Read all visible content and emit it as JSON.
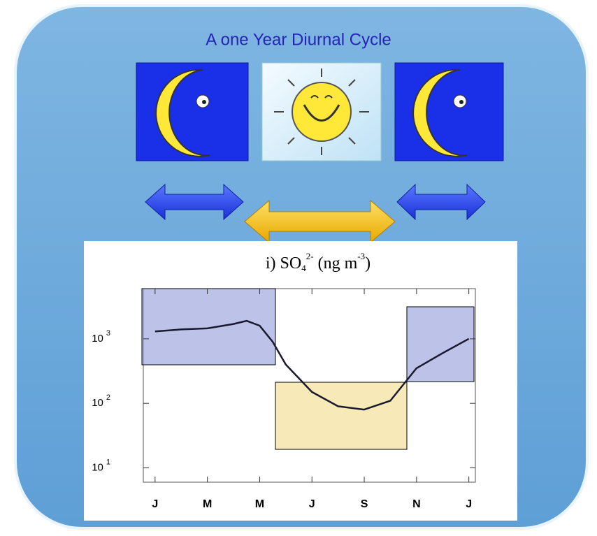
{
  "slide_title": "A one Year Diurnal Cycle",
  "chart_data": {
    "type": "line",
    "title_parts": [
      "i) SO",
      "4",
      "2-",
      " (ng m",
      "-3",
      ")"
    ],
    "x": [
      0,
      1,
      2,
      3,
      3.5,
      4,
      4.5,
      5,
      6,
      7,
      8,
      9,
      10,
      11,
      12
    ],
    "values": [
      1300,
      1400,
      1450,
      1700,
      1900,
      1600,
      900,
      400,
      150,
      90,
      80,
      110,
      350,
      600,
      1000
    ],
    "color": "#1a1a2e",
    "log_y": true,
    "xlim": [
      -0.45,
      12.25
    ],
    "ylim": [
      6,
      6000
    ],
    "xticks": [
      {
        "value": 0,
        "label": "J"
      },
      {
        "value": 2,
        "label": "M"
      },
      {
        "value": 4,
        "label": "M"
      },
      {
        "value": 6,
        "label": "J"
      },
      {
        "value": 8,
        "label": "S"
      },
      {
        "value": 10,
        "label": "N"
      },
      {
        "value": 12,
        "label": "J"
      }
    ],
    "yticks": [
      {
        "value": 10,
        "label": "10",
        "exponent": "1"
      },
      {
        "value": 100,
        "label": "10",
        "exponent": "2"
      },
      {
        "value": 1000,
        "label": "10",
        "exponent": "3"
      }
    ]
  }
}
